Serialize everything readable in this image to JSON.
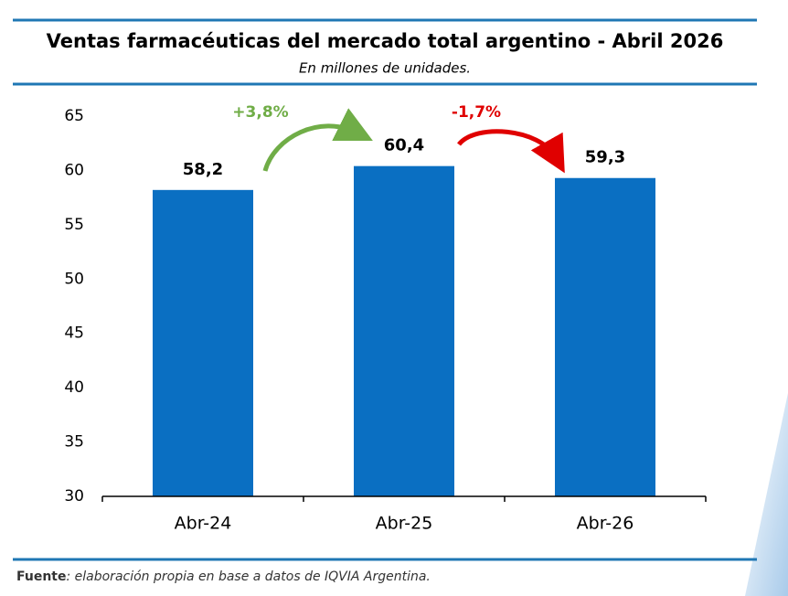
{
  "chart_data": {
    "type": "bar",
    "title": "Ventas farmacéuticas del mercado total argentino - Abril 2026",
    "subtitle": "En millones de unidades.",
    "categories": [
      "Abr-24",
      "Abr-25",
      "Abr-26"
    ],
    "values": [
      58.2,
      60.4,
      59.3
    ],
    "value_labels": [
      "58,2",
      "60,4",
      "59,3"
    ],
    "color": "#0a6fc2",
    "ylim": [
      30,
      65
    ],
    "yticks": [
      30,
      35,
      40,
      45,
      50,
      55,
      60,
      65
    ],
    "grid": false,
    "annotations": [
      "+3,8%",
      "-1,7%"
    ],
    "source_label": "Fuente",
    "source_text": ": elaboración propia en base a datos de IQVIA Argentina."
  }
}
